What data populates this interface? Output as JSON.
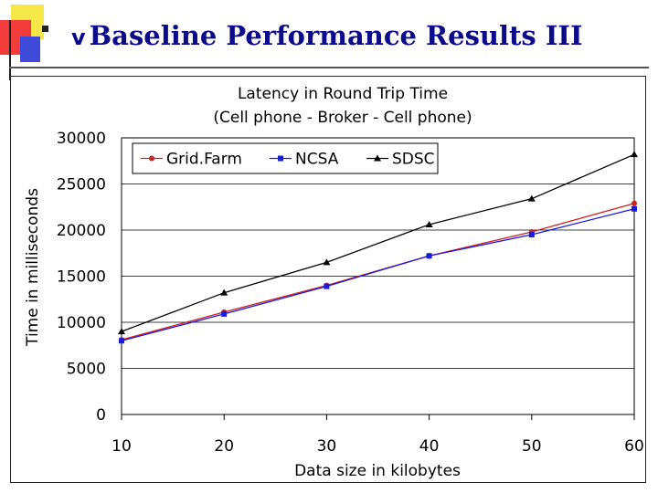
{
  "slide": {
    "title_mark": "v",
    "title": "Baseline Performance Results III"
  },
  "colors": {
    "title": "#0a0a8a",
    "grid_farm": "#cc2222",
    "ncsa": "#1a1adb",
    "sdsc": "#000000"
  },
  "chart_data": {
    "type": "line",
    "title": [
      "Latency in Round Trip Time",
      "(Cell phone - Broker - Cell phone)"
    ],
    "xlabel": "Data size in kilobytes",
    "ylabel": "Time in milliseconds",
    "categories": [
      10,
      20,
      30,
      40,
      50,
      60
    ],
    "ylim": [
      0,
      30000
    ],
    "yticks": [
      0,
      5000,
      10000,
      15000,
      20000,
      25000,
      30000
    ],
    "grid": true,
    "legend_position": "top-center",
    "series": [
      {
        "name": "Grid.Farm",
        "color": "#cc2222",
        "marker": "circle",
        "values": [
          8100,
          11100,
          14000,
          17200,
          19800,
          22900
        ]
      },
      {
        "name": "NCSA",
        "color": "#1a1adb",
        "marker": "square",
        "values": [
          8000,
          10900,
          13900,
          17200,
          19500,
          22300
        ]
      },
      {
        "name": "SDSC",
        "color": "#000000",
        "marker": "triangle",
        "values": [
          9000,
          13200,
          16500,
          20600,
          23400,
          28200
        ]
      }
    ]
  }
}
